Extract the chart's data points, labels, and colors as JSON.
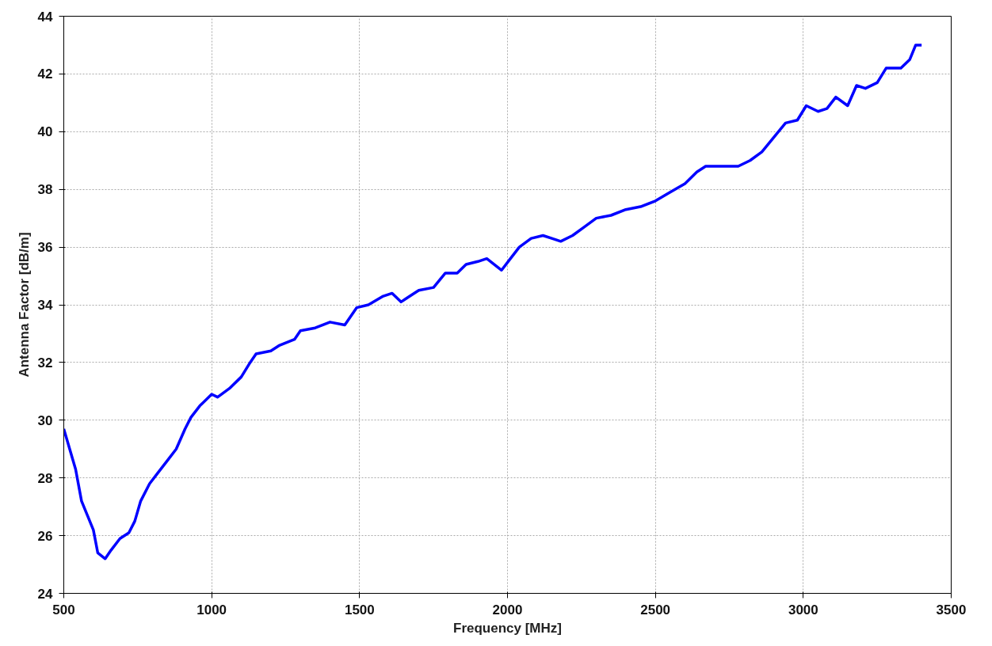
{
  "chart_data": {
    "type": "line",
    "xlabel": "Frequency [MHz]",
    "ylabel": "Antenna Factor [dB/m]",
    "xlim": [
      500,
      3500
    ],
    "ylim": [
      24,
      44
    ],
    "xticks": [
      500,
      1000,
      1500,
      2000,
      2500,
      3000,
      3500
    ],
    "yticks": [
      24,
      26,
      28,
      30,
      32,
      34,
      36,
      38,
      40,
      42,
      44
    ],
    "grid": true,
    "marker": "none",
    "line_style": "solid",
    "series": [
      {
        "color": "#0000ff",
        "x": [
          500,
          520,
          540,
          560,
          580,
          600,
          615,
          640,
          660,
          690,
          720,
          740,
          760,
          790,
          820,
          850,
          880,
          910,
          930,
          960,
          1000,
          1020,
          1060,
          1100,
          1130,
          1150,
          1200,
          1230,
          1280,
          1300,
          1350,
          1400,
          1450,
          1490,
          1530,
          1580,
          1610,
          1640,
          1670,
          1700,
          1750,
          1790,
          1830,
          1860,
          1900,
          1930,
          1980,
          2010,
          2040,
          2080,
          2120,
          2150,
          2180,
          2220,
          2260,
          2300,
          2350,
          2400,
          2450,
          2500,
          2550,
          2600,
          2640,
          2670,
          2720,
          2780,
          2820,
          2860,
          2900,
          2940,
          2980,
          3010,
          3050,
          3080,
          3110,
          3150,
          3180,
          3210,
          3250,
          3280,
          3330,
          3360,
          3380,
          3400
        ],
        "values": [
          29.7,
          29.0,
          28.3,
          27.2,
          26.7,
          26.2,
          25.4,
          25.2,
          25.5,
          25.9,
          26.1,
          26.5,
          27.2,
          27.8,
          28.2,
          28.6,
          29.0,
          29.7,
          30.1,
          30.5,
          30.9,
          30.8,
          31.1,
          31.5,
          32.0,
          32.3,
          32.4,
          32.6,
          32.8,
          33.1,
          33.2,
          33.4,
          33.3,
          33.9,
          34.0,
          34.3,
          34.4,
          34.1,
          34.3,
          34.5,
          34.6,
          35.1,
          35.1,
          35.4,
          35.5,
          35.6,
          35.2,
          35.6,
          36.0,
          36.3,
          36.4,
          36.3,
          36.2,
          36.4,
          36.7,
          37.0,
          37.1,
          37.3,
          37.4,
          37.6,
          37.9,
          38.2,
          38.6,
          38.8,
          38.8,
          38.8,
          39.0,
          39.3,
          39.8,
          40.3,
          40.4,
          40.9,
          40.7,
          40.8,
          41.2,
          40.9,
          41.6,
          41.5,
          41.7,
          42.2,
          42.2,
          42.5,
          43.0,
          43.0
        ]
      }
    ]
  }
}
